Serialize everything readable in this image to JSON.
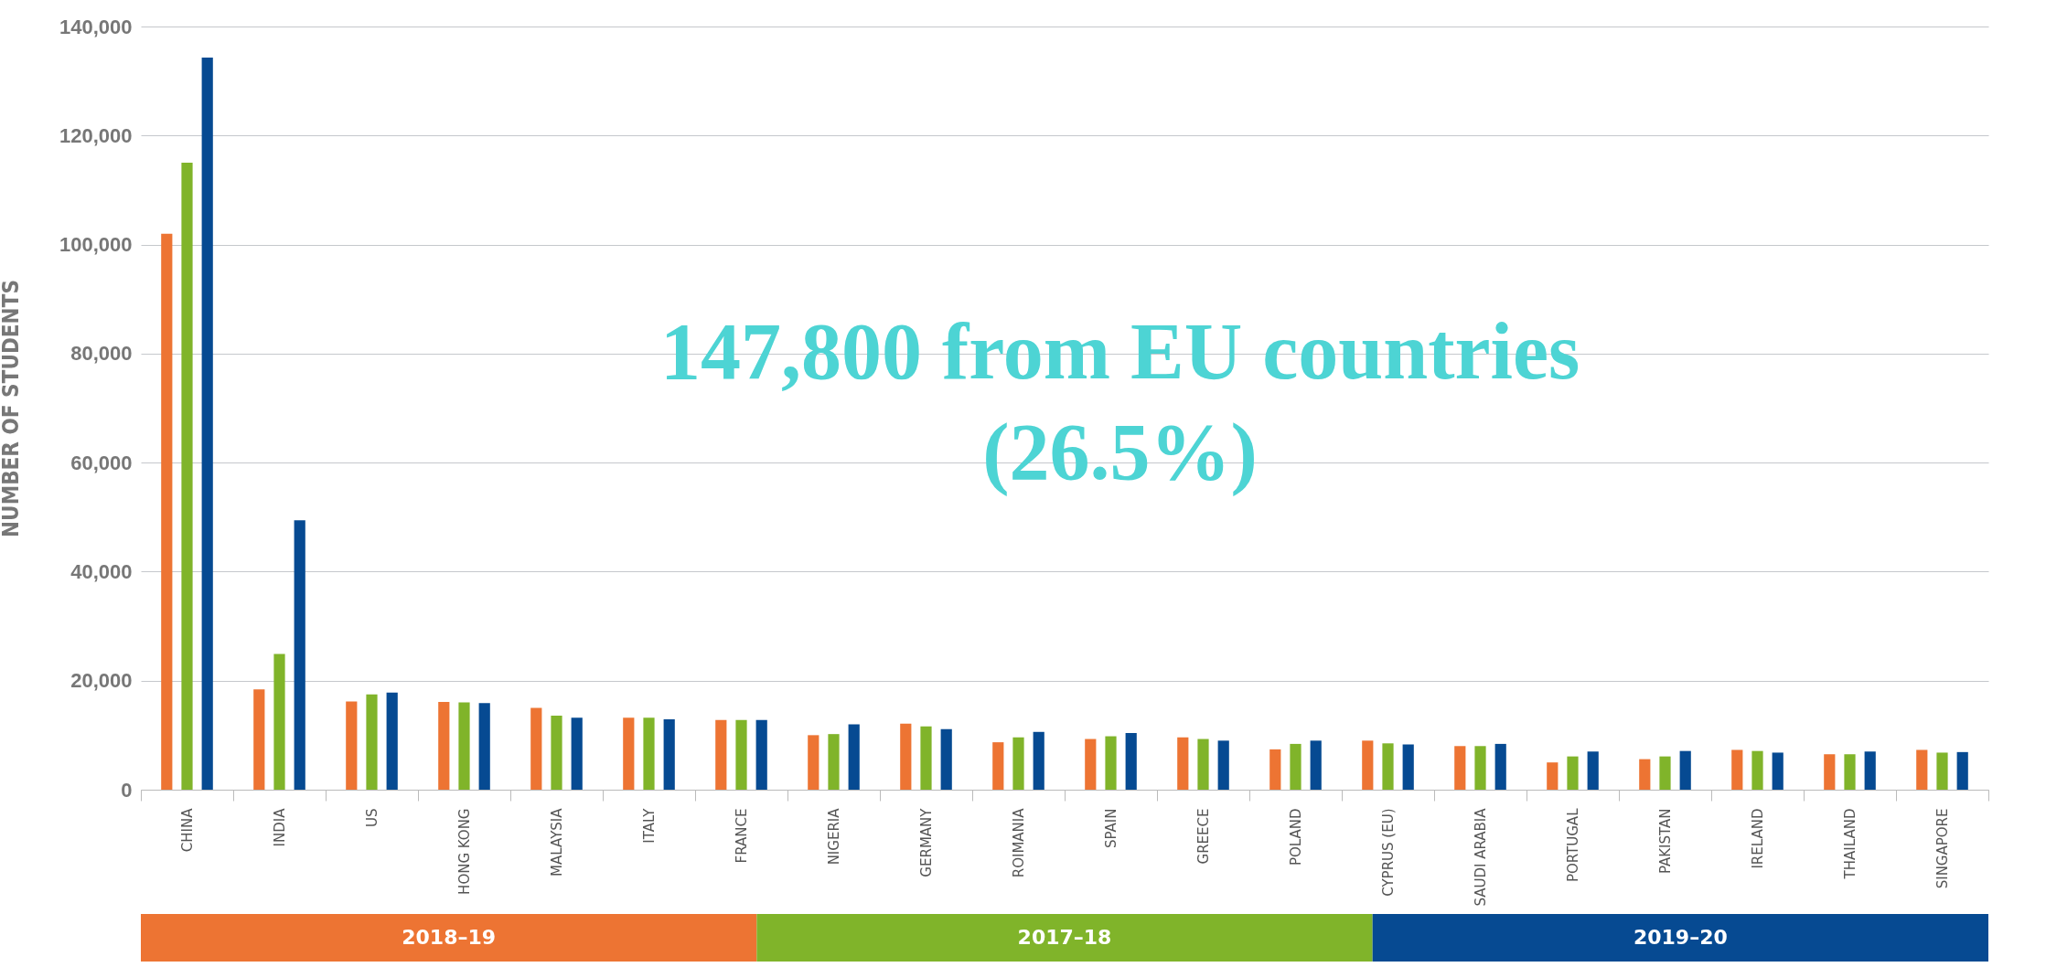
{
  "chart_data": {
    "type": "bar",
    "ylabel": "NUMBER OF STUDENTS",
    "categories": [
      "CHINA",
      "INDIA",
      "US",
      "HONG KONG",
      "MALAYSIA",
      "ITALY",
      "FRANCE",
      "NIGERIA",
      "GERMANY",
      "ROIMANIA",
      "SPAIN",
      "GREECE",
      "POLAND",
      "CYPRUS (EU)",
      "SAUDI ARABIA",
      "PORTUGAL",
      "PAKISTAN",
      "IRELAND",
      "THAILAND",
      "SINGAPORE"
    ],
    "series": [
      {
        "name": "2018–19",
        "color": "#ed7433",
        "values": [
          102000,
          18400,
          16200,
          16100,
          15000,
          13200,
          12800,
          10000,
          12100,
          8700,
          9300,
          9600,
          7400,
          9000,
          8000,
          5000,
          5600,
          7300,
          6500,
          7300
        ]
      },
      {
        "name": "2017–18",
        "color": "#80b42a",
        "values": [
          115000,
          24900,
          17500,
          16000,
          13600,
          13200,
          12800,
          10200,
          11600,
          9600,
          9800,
          9300,
          8400,
          8500,
          8000,
          6100,
          6100,
          7100,
          6500,
          6800
        ]
      },
      {
        "name": "2019–20",
        "color": "#064a92",
        "values": [
          134300,
          49400,
          17800,
          15900,
          13200,
          12900,
          12800,
          12000,
          11100,
          10600,
          10400,
          9000,
          9000,
          8300,
          8400,
          7000,
          7100,
          6800,
          7000,
          6900
        ]
      }
    ],
    "ylim": [
      0,
      140000
    ],
    "yticks": [
      0,
      {
        "value": 20000,
        "label": "20,000"
      },
      {
        "value": 40000,
        "label": "40,000"
      },
      {
        "value": 60000,
        "label": "60,000"
      },
      {
        "value": 80000,
        "label": "80,000"
      },
      {
        "value": 100000,
        "label": "100,000"
      },
      {
        "value": 120000,
        "label": "120,000"
      },
      {
        "value": 140000,
        "label": "140,000"
      }
    ],
    "grid": "y",
    "legend": "bottom",
    "annotations": [
      "147,800 from EU countries\n(26.5%)"
    ]
  }
}
